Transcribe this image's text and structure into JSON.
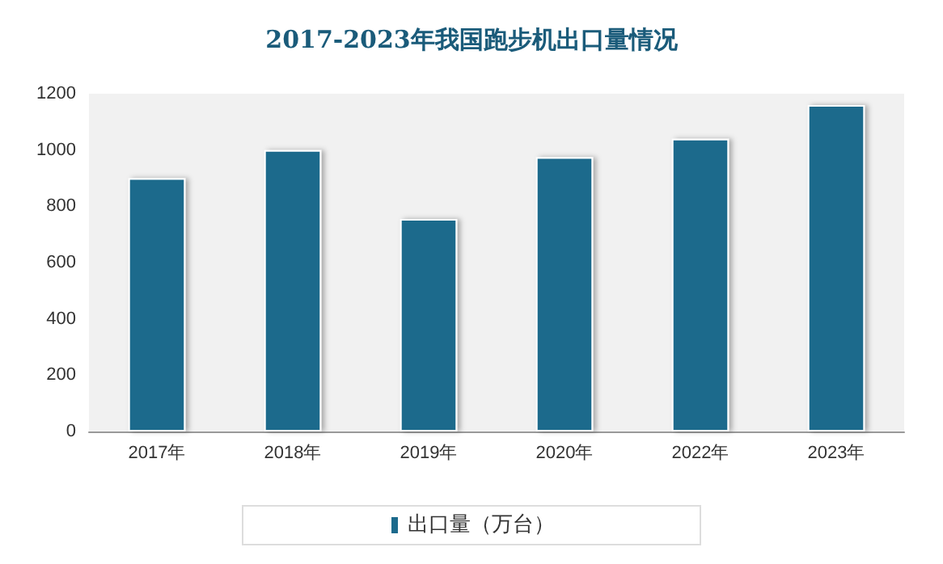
{
  "chart_data": {
    "type": "bar",
    "title": "2017-2023年我国跑步机出口量情况",
    "categories": [
      "2017年",
      "2018年",
      "2019年",
      "2020年",
      "2022年",
      "2023年"
    ],
    "series": [
      {
        "name": "出口量（万台）",
        "color": "#1c6a8c",
        "values": [
          900,
          1000,
          755,
          975,
          1040,
          1160
        ]
      }
    ],
    "ylim": [
      0,
      1200
    ],
    "yticks": [
      0,
      200,
      400,
      600,
      800,
      1000,
      1200
    ],
    "grid": false,
    "legend": "bottom"
  }
}
